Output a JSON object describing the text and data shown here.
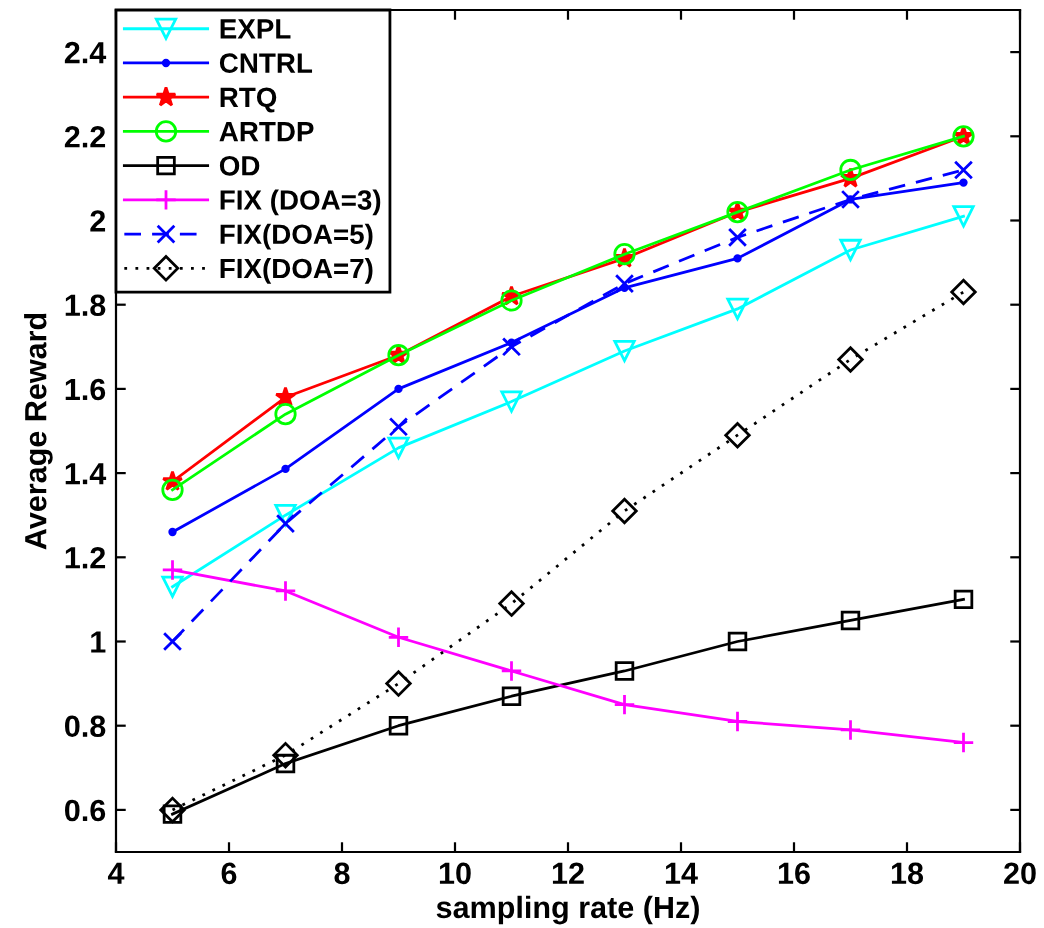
{
  "chart_data": {
    "type": "line",
    "xlabel": "sampling rate (Hz)",
    "ylabel": "Average Reward",
    "x": [
      5,
      7,
      9,
      11,
      13,
      15,
      17,
      19
    ],
    "series": [
      {
        "name": "EXPL",
        "color": "#00ffff",
        "marker": "triangle_down",
        "line_style": "solid",
        "values": [
          1.13,
          1.3,
          1.46,
          1.57,
          1.69,
          1.79,
          1.93,
          2.01
        ]
      },
      {
        "name": "CNTRL",
        "color": "#0000ff",
        "marker": "point",
        "line_style": "solid",
        "values": [
          1.26,
          1.41,
          1.6,
          1.71,
          1.84,
          1.91,
          2.05,
          2.09
        ]
      },
      {
        "name": "RTQ",
        "color": "#ff0000",
        "marker": "star",
        "line_style": "solid",
        "values": [
          1.38,
          1.58,
          1.68,
          1.82,
          1.91,
          2.02,
          2.1,
          2.2
        ]
      },
      {
        "name": "ARTDP",
        "color": "#00ff00",
        "marker": "circle",
        "line_style": "solid",
        "values": [
          1.36,
          1.54,
          1.68,
          1.81,
          1.92,
          2.02,
          2.12,
          2.2
        ]
      },
      {
        "name": "OD",
        "color": "#000000",
        "marker": "square",
        "line_style": "solid",
        "values": [
          0.59,
          0.71,
          0.8,
          0.87,
          0.93,
          1.0,
          1.05,
          1.1
        ]
      },
      {
        "name": "FIX (DOA=3)",
        "color": "#ff00ff",
        "marker": "plus",
        "line_style": "solid",
        "values": [
          1.17,
          1.12,
          1.01,
          0.93,
          0.85,
          0.81,
          0.79,
          0.76
        ]
      },
      {
        "name": "FIX(DOA=5)",
        "color": "#0000ff",
        "marker": "cross",
        "line_style": "dashed",
        "values": [
          1.0,
          1.28,
          1.51,
          1.7,
          1.85,
          1.96,
          2.05,
          2.12
        ]
      },
      {
        "name": "FIX(DOA=7)",
        "color": "#000000",
        "marker": "diamond",
        "line_style": "dotted",
        "values": [
          0.6,
          0.73,
          0.9,
          1.09,
          1.31,
          1.49,
          1.67,
          1.83
        ]
      }
    ],
    "xlim": [
      4,
      20
    ],
    "xticks": [
      4,
      6,
      8,
      10,
      12,
      14,
      16,
      18,
      20
    ],
    "ylim": [
      0.5,
      2.5
    ],
    "yticks": [
      0.6,
      0.8,
      1,
      1.2,
      1.4,
      1.6,
      1.8,
      2,
      2.2,
      2.4
    ],
    "grid": false,
    "legend": "top left"
  }
}
